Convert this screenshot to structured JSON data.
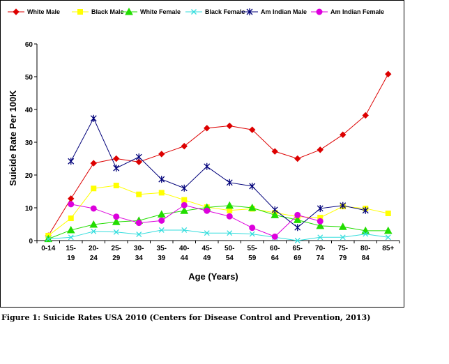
{
  "caption": "Figure 1: Suicide Rates USA 2010 (Centers for Disease Control and Prevention, 2013)",
  "chart_data": {
    "type": "line",
    "title": "",
    "xlabel": "Age (Years)",
    "ylabel": "Suicide Rate Per 100K",
    "ylim": [
      0,
      60
    ],
    "yticks": [
      "0",
      "10",
      "20",
      "30",
      "40",
      "50",
      "60"
    ],
    "categories": [
      "0-14",
      "15-19",
      "20-24",
      "25-29",
      "30-34",
      "35-39",
      "40-44",
      "45-49",
      "50-54",
      "55-59",
      "60-64",
      "65-69",
      "70-74",
      "75-79",
      "80-84",
      "85+"
    ],
    "category_lines": [
      [
        "0-14"
      ],
      [
        "15-",
        "19"
      ],
      [
        "20-",
        "24"
      ],
      [
        "25-",
        "29"
      ],
      [
        "30-",
        "34"
      ],
      [
        "35-",
        "39"
      ],
      [
        "40-",
        "44"
      ],
      [
        "45-",
        "49"
      ],
      [
        "50-",
        "54"
      ],
      [
        "55-",
        "59"
      ],
      [
        "60-",
        "64"
      ],
      [
        "65-",
        "69"
      ],
      [
        "70-",
        "74"
      ],
      [
        "75-",
        "79"
      ],
      [
        "80-",
        "84"
      ],
      [
        "85+"
      ]
    ],
    "legend_position": "top",
    "grid": false,
    "series": [
      {
        "name": "White Male",
        "color": "#dd0000",
        "marker": "diamond",
        "values": [
          1.5,
          12.8,
          23.6,
          25.0,
          24.0,
          26.4,
          28.8,
          34.3,
          35.0,
          33.8,
          27.2,
          25.0,
          27.7,
          32.3,
          38.2,
          50.8
        ]
      },
      {
        "name": "Black Male",
        "color": "#ffff00",
        "marker": "square",
        "values": [
          1.5,
          6.8,
          15.9,
          16.8,
          14.1,
          14.6,
          12.4,
          10.2,
          9.2,
          9.7,
          8.5,
          7.3,
          7.0,
          10.4,
          9.8,
          8.3
        ]
      },
      {
        "name": "White Female",
        "color": "#22dd00",
        "marker": "triangle",
        "values": [
          0.5,
          3.2,
          4.9,
          5.7,
          6.1,
          8.0,
          9.1,
          10.1,
          10.7,
          10.0,
          7.8,
          6.3,
          4.5,
          4.2,
          3.0,
          3.0
        ]
      },
      {
        "name": "Black Female",
        "color": "#33dddd",
        "marker": "x",
        "values": [
          0.5,
          1.0,
          2.8,
          2.6,
          1.9,
          3.2,
          3.2,
          2.3,
          2.3,
          2.0,
          1.0,
          0.0,
          1.0,
          1.0,
          2.0,
          1.0
        ]
      },
      {
        "name": "Am Indian Male",
        "color": "#00007a",
        "marker": "star",
        "values": [
          null,
          24.2,
          37.3,
          22.1,
          25.5,
          18.7,
          16.0,
          22.6,
          17.7,
          16.6,
          9.4,
          4.0,
          9.8,
          10.7,
          9.2,
          null
        ]
      },
      {
        "name": "Am Indian Female",
        "color": "#dd00dd",
        "marker": "circle",
        "values": [
          null,
          11.1,
          9.8,
          7.3,
          5.4,
          6.1,
          10.8,
          9.1,
          7.4,
          3.9,
          1.2,
          7.8,
          5.9,
          null,
          null,
          null
        ]
      }
    ]
  }
}
